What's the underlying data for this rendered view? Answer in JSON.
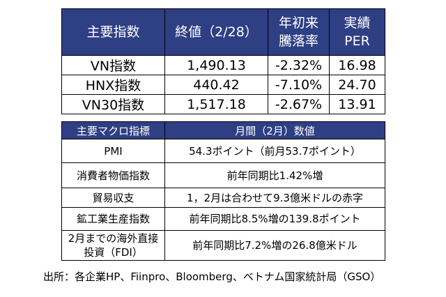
{
  "index_table": {
    "headers": [
      "主要指数",
      "終値（2/28）",
      "年初来騰落率",
      "実績PER"
    ],
    "header_lines": {
      "ytd": [
        "年初来",
        "騰落率"
      ],
      "per": [
        "実績",
        "PER"
      ]
    },
    "rows": [
      {
        "name": "VN指数",
        "close": "1,490.13",
        "ytd": "-2.32%",
        "per": "16.98"
      },
      {
        "name": "HNX指数",
        "close": "440.42",
        "ytd": "-7.10%",
        "per": "24.70"
      },
      {
        "name": "VN30指数",
        "close": "1,517.18",
        "ytd": "-2.67%",
        "per": "13.91"
      }
    ]
  },
  "macro_table": {
    "headers": [
      "主要マクロ指標",
      "月間（2月）数値"
    ],
    "rows": [
      {
        "indicator": "PMI",
        "value": "54.3ポイント（前月53.7ポイント）"
      },
      {
        "indicator": "消費者物価指数",
        "value": "前年同期比1.42%増"
      },
      {
        "indicator": "貿易収支",
        "value": "1，2月は合わせて9.3億米ドルの赤字"
      },
      {
        "indicator": "鉱工業生産指数",
        "value": "前年同期比8.5%増の139.8ポイント"
      },
      {
        "indicator": "2月までの海外直接投資（FDI）",
        "indicator_lines": [
          "2月までの海外直接",
          "投資（FDI）"
        ],
        "value": "前年同期比7.2%増の26.8億米ドル"
      }
    ]
  },
  "source_note": "出所：各企業HP、Fiinpro、Bloomberg、ベトナム国家統計局（GSO）",
  "colors": {
    "header_bg": "#2f3f83",
    "header_text": "#ffffff"
  }
}
